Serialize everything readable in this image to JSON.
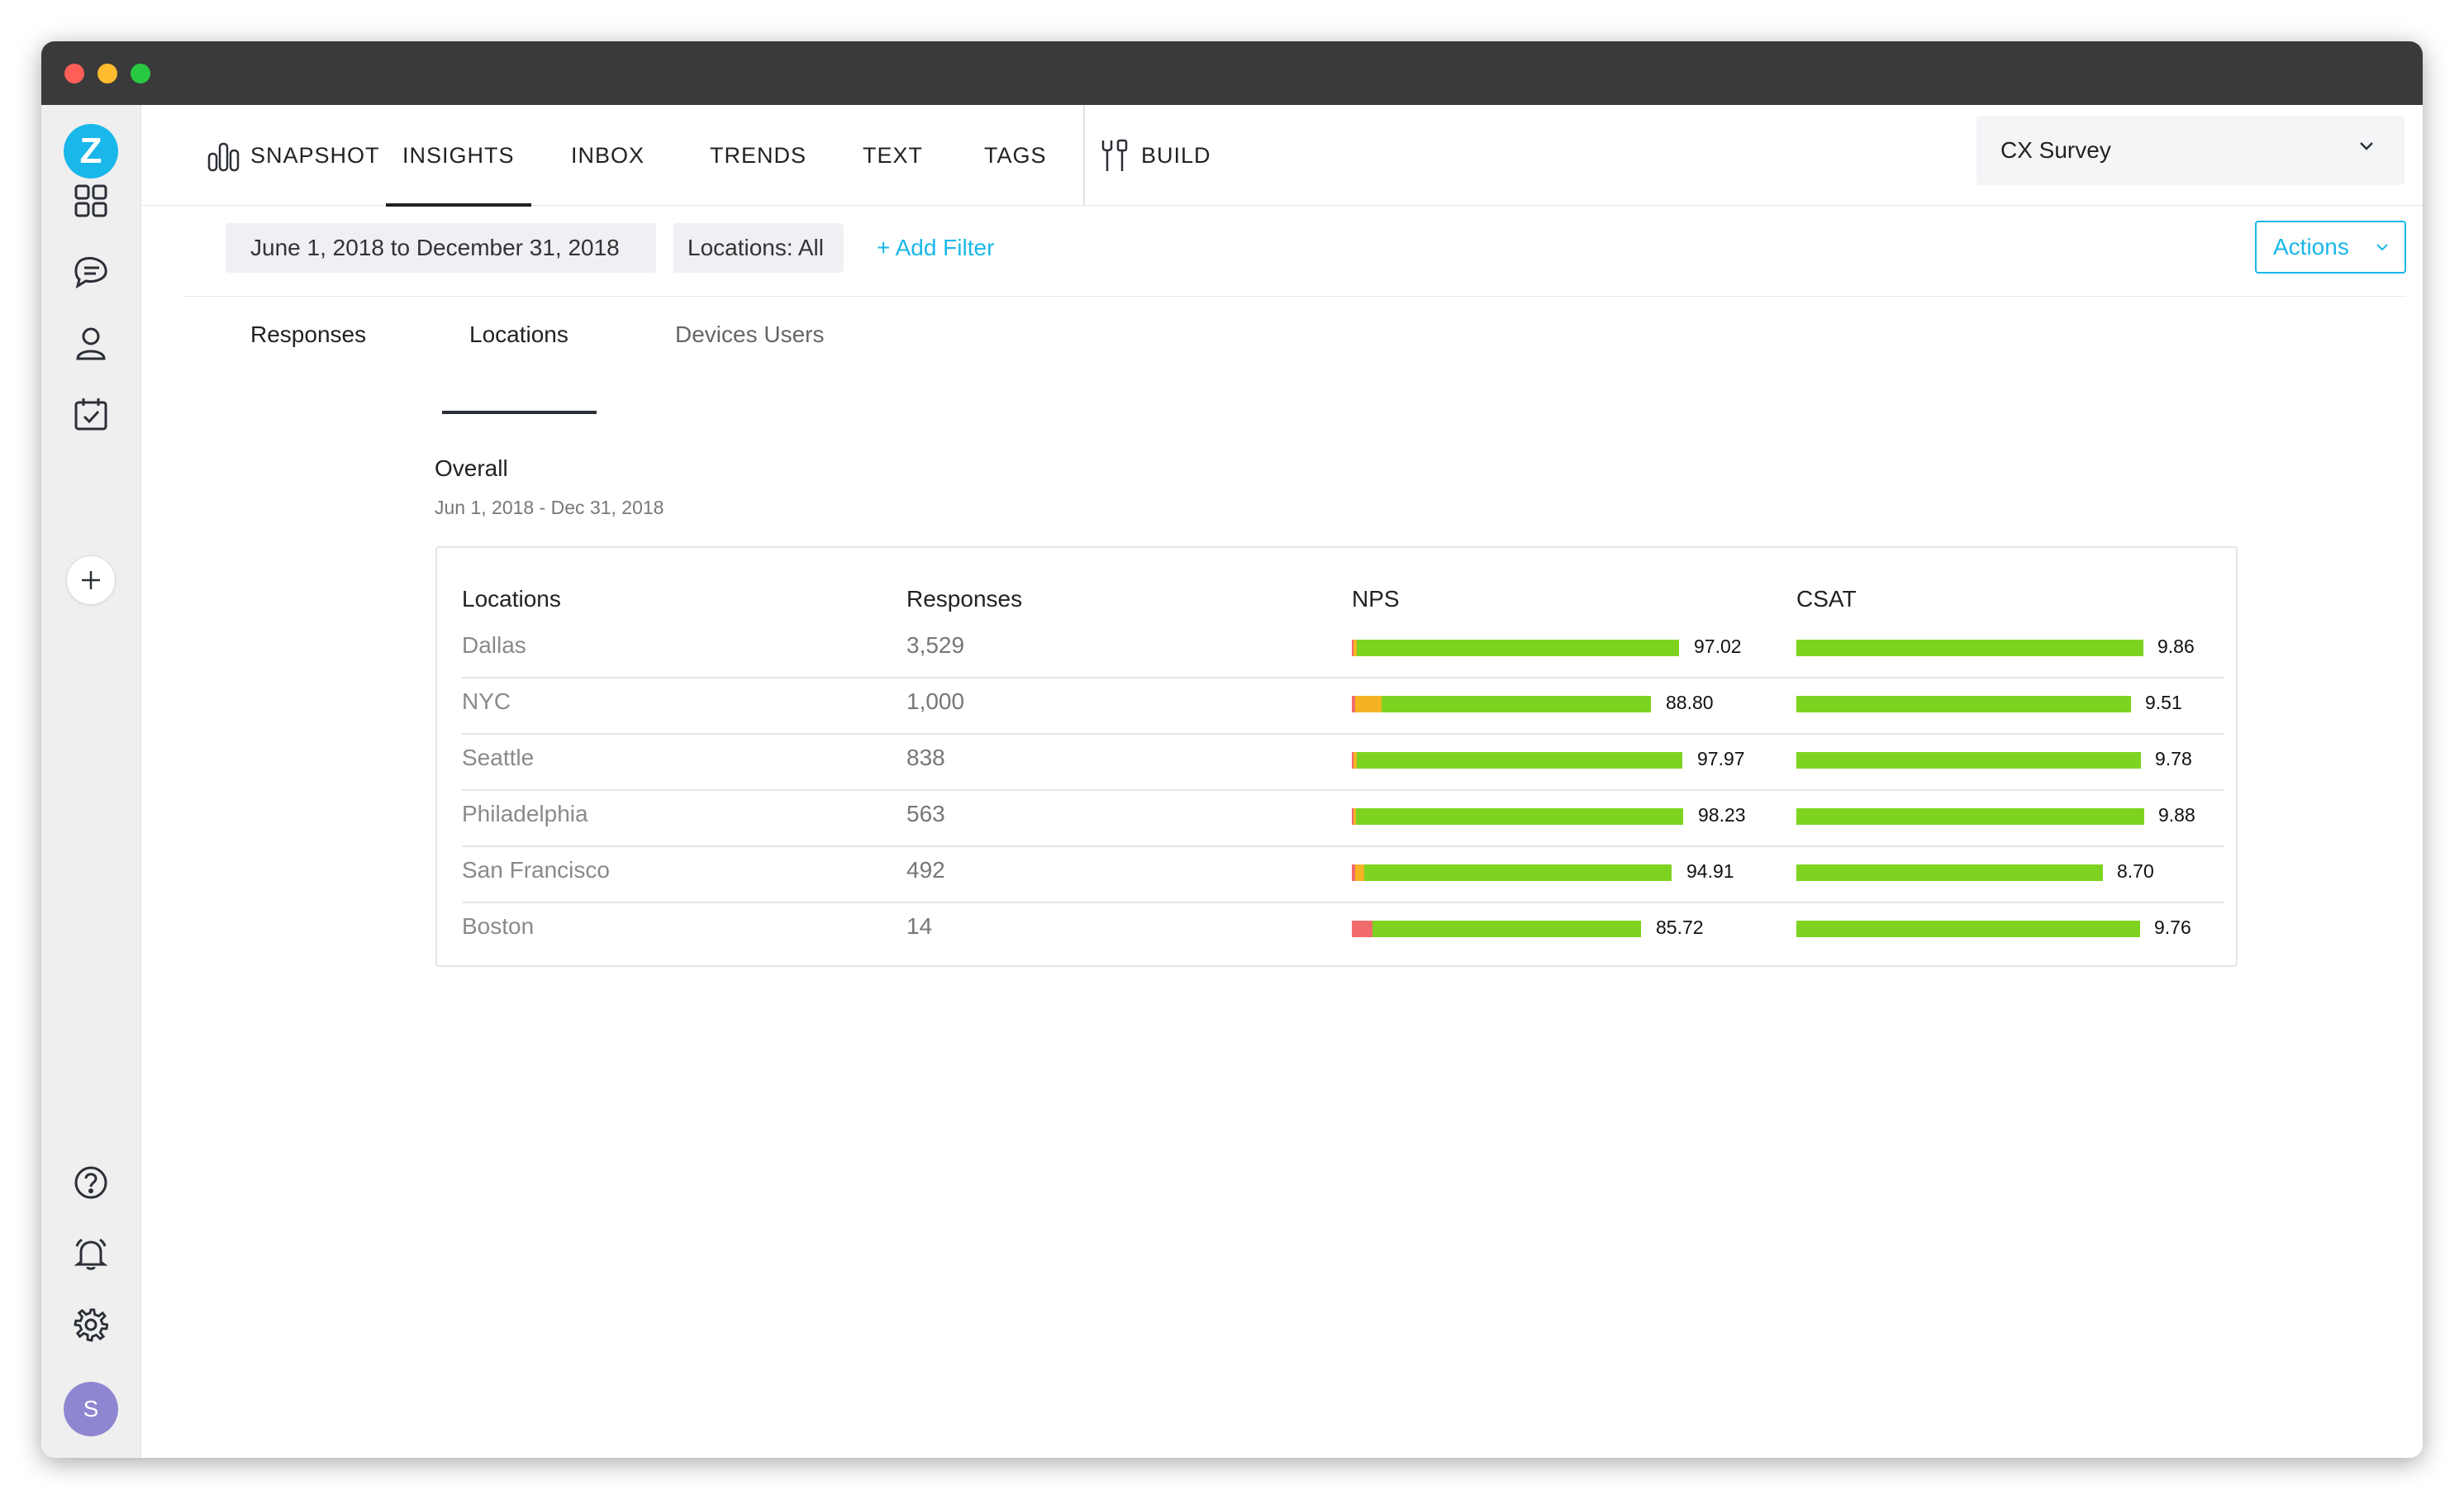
{
  "window": {
    "controls": [
      "#ff5f57",
      "#febc2e",
      "#28c840"
    ]
  },
  "sidebar": {
    "logo_letter": "Z",
    "icons": [
      "dashboard-icon",
      "chat-icon",
      "user-icon",
      "calendar-check-icon"
    ],
    "bottom_icons": [
      "help-icon",
      "bell-icon",
      "settings-icon"
    ],
    "avatar_letter": "S"
  },
  "topnav": {
    "items": [
      "SNAPSHOT",
      "INSIGHTS",
      "INBOX",
      "TRENDS",
      "TEXT",
      "TAGS"
    ],
    "active": "INSIGHTS",
    "build": "BUILD",
    "survey": "CX Survey"
  },
  "filters": {
    "date_range": "June 1, 2018 to December 31, 2018",
    "locations": "Locations: All",
    "add_filter": "+ Add Filter",
    "actions": "Actions"
  },
  "tabs": {
    "items": [
      "Responses",
      "Locations",
      "Devices Users"
    ],
    "active": "Locations"
  },
  "overall": {
    "title": "Overall",
    "date": "Jun 1, 2018 - Dec 31, 2018"
  },
  "table": {
    "headers": [
      "Locations",
      "Responses",
      "NPS",
      "CSAT"
    ],
    "colors": {
      "detractor": "#f26b6b",
      "passive": "#f5b324",
      "promoter": "#7ed321"
    },
    "rows": [
      {
        "location": "Dallas",
        "responses": "3,529",
        "nps": "97.02",
        "nps_segments": [
          0.005,
          0.01,
          0.985
        ],
        "csat": "9.86",
        "csat_fraction": 0.986
      },
      {
        "location": "NYC",
        "responses": "1,000",
        "nps": "88.80",
        "nps_segments": [
          0.01,
          0.09,
          0.9
        ],
        "csat": "9.51",
        "csat_fraction": 0.951
      },
      {
        "location": "Seattle",
        "responses": "838",
        "nps": "97.97",
        "nps_segments": [
          0.005,
          0.01,
          0.985
        ],
        "csat": "9.78",
        "csat_fraction": 0.978
      },
      {
        "location": "Philadelphia",
        "responses": "563",
        "nps": "98.23",
        "nps_segments": [
          0.005,
          0.008,
          0.987
        ],
        "csat": "9.88",
        "csat_fraction": 0.988
      },
      {
        "location": "San Francisco",
        "responses": "492",
        "nps": "94.91",
        "nps_segments": [
          0.01,
          0.03,
          0.96
        ],
        "csat": "8.70",
        "csat_fraction": 0.87
      },
      {
        "location": "Boston",
        "responses": "14",
        "nps": "85.72",
        "nps_segments": [
          0.07,
          0.0,
          0.93
        ],
        "csat": "9.76",
        "csat_fraction": 0.976
      }
    ]
  }
}
